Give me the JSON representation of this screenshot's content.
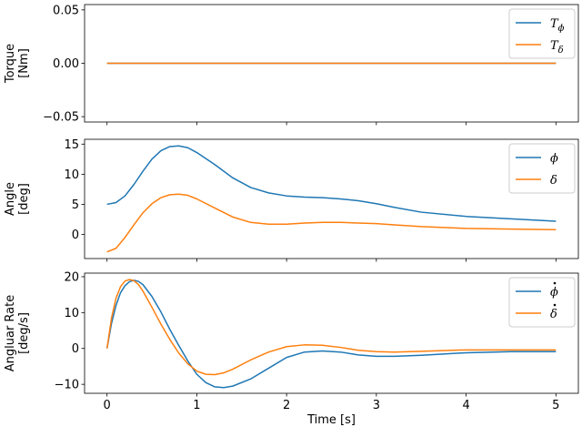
{
  "chart_data": [
    {
      "type": "line",
      "ylabel": [
        "Torque",
        "[Nm]"
      ],
      "xlim": [
        -0.25,
        5.25
      ],
      "ylim": [
        -0.055,
        0.055
      ],
      "yticks": [
        -0.05,
        0.0,
        0.05
      ],
      "yticklabels": [
        "−0.05",
        "0.00",
        "0.05"
      ],
      "xticks": [
        0,
        1,
        2,
        3,
        4,
        5
      ],
      "legend": "top-right",
      "series": [
        {
          "name": "T_ϕ",
          "legend_main": "T",
          "legend_sub": "ϕ",
          "color": "#1f77b4",
          "x": [
            0,
            5
          ],
          "y": [
            0,
            0
          ]
        },
        {
          "name": "T_δ",
          "legend_main": "T",
          "legend_sub": "δ",
          "color": "#ff7f0e",
          "x": [
            0,
            5
          ],
          "y": [
            0,
            0
          ]
        }
      ]
    },
    {
      "type": "line",
      "ylabel": [
        "Angle",
        "[deg]"
      ],
      "xlim": [
        -0.25,
        5.25
      ],
      "ylim": [
        -4,
        15.8
      ],
      "yticks": [
        0,
        5,
        10,
        15
      ],
      "yticklabels": [
        "0",
        "5",
        "10",
        "15"
      ],
      "xticks": [
        0,
        1,
        2,
        3,
        4,
        5
      ],
      "legend": "top-right",
      "series": [
        {
          "name": "ϕ",
          "legend_main": "ϕ",
          "color": "#1f77b4",
          "x": [
            0,
            0.1,
            0.2,
            0.3,
            0.4,
            0.5,
            0.6,
            0.7,
            0.8,
            0.9,
            1.0,
            1.2,
            1.4,
            1.6,
            1.8,
            2.0,
            2.2,
            2.4,
            2.6,
            2.8,
            3.0,
            3.2,
            3.5,
            4.0,
            4.5,
            5.0
          ],
          "y": [
            5.0,
            5.3,
            6.4,
            8.3,
            10.5,
            12.5,
            13.9,
            14.6,
            14.7,
            14.4,
            13.6,
            11.6,
            9.4,
            7.8,
            6.9,
            6.4,
            6.2,
            6.1,
            5.9,
            5.6,
            5.1,
            4.5,
            3.7,
            3.0,
            2.6,
            2.2
          ]
        },
        {
          "name": "δ",
          "legend_main": "δ",
          "color": "#ff7f0e",
          "x": [
            0,
            0.1,
            0.2,
            0.3,
            0.4,
            0.5,
            0.6,
            0.7,
            0.8,
            0.9,
            1.0,
            1.2,
            1.4,
            1.6,
            1.8,
            2.0,
            2.2,
            2.4,
            2.6,
            2.8,
            3.0,
            3.2,
            3.5,
            4.0,
            4.5,
            5.0
          ],
          "y": [
            -2.9,
            -2.3,
            -0.5,
            1.6,
            3.6,
            5.1,
            6.1,
            6.6,
            6.7,
            6.5,
            5.9,
            4.4,
            2.9,
            2.0,
            1.7,
            1.7,
            1.9,
            2.0,
            2.0,
            1.9,
            1.8,
            1.6,
            1.3,
            1.0,
            0.9,
            0.8
          ]
        }
      ]
    },
    {
      "type": "line",
      "ylabel": [
        "Angluar Rate",
        "[deg/s]"
      ],
      "xlim": [
        -0.25,
        5.25
      ],
      "ylim": [
        -12.5,
        21
      ],
      "yticks": [
        -10,
        0,
        10,
        20
      ],
      "yticklabels": [
        "−10",
        "0",
        "10",
        "20"
      ],
      "xticks": [
        0,
        1,
        2,
        3,
        4,
        5
      ],
      "xticklabels": [
        "0",
        "1",
        "2",
        "3",
        "4",
        "5"
      ],
      "xlabel": "Time [s]",
      "legend": "top-right",
      "series": [
        {
          "name": "ϕ̇",
          "legend_main": "ϕ",
          "legend_dot": true,
          "color": "#1f77b4",
          "x": [
            0,
            0.05,
            0.1,
            0.15,
            0.2,
            0.25,
            0.3,
            0.35,
            0.4,
            0.5,
            0.6,
            0.7,
            0.8,
            0.9,
            1.0,
            1.1,
            1.2,
            1.3,
            1.4,
            1.6,
            1.8,
            2.0,
            2.2,
            2.4,
            2.6,
            2.8,
            3.0,
            3.2,
            3.5,
            4.0,
            4.5,
            5.0
          ],
          "y": [
            0,
            7,
            12,
            15.5,
            17.5,
            18.6,
            19.0,
            18.7,
            17.8,
            14.5,
            10.2,
            5.3,
            0.8,
            -3.5,
            -7.2,
            -9.5,
            -10.7,
            -10.9,
            -10.5,
            -8.5,
            -5.5,
            -2.5,
            -1.0,
            -0.7,
            -1.0,
            -1.8,
            -2.2,
            -2.2,
            -1.9,
            -1.2,
            -0.9,
            -0.9
          ]
        },
        {
          "name": "δ̇",
          "legend_main": "δ",
          "legend_dot": true,
          "color": "#ff7f0e",
          "x": [
            0,
            0.05,
            0.1,
            0.15,
            0.2,
            0.25,
            0.3,
            0.35,
            0.4,
            0.5,
            0.6,
            0.7,
            0.8,
            0.9,
            1.0,
            1.1,
            1.2,
            1.3,
            1.4,
            1.6,
            1.8,
            2.0,
            2.2,
            2.4,
            2.6,
            2.8,
            3.0,
            3.2,
            3.5,
            4.0,
            4.5,
            5.0
          ],
          "y": [
            0,
            8.5,
            14,
            17.2,
            18.8,
            19.2,
            18.9,
            17.8,
            16.0,
            11.5,
            6.8,
            2.5,
            -1.3,
            -4.3,
            -6.3,
            -7.2,
            -7.3,
            -6.8,
            -5.8,
            -3.2,
            -1.0,
            0.5,
            1.0,
            0.9,
            0.3,
            -0.5,
            -0.9,
            -1.0,
            -0.8,
            -0.4,
            -0.4,
            -0.4
          ]
        }
      ]
    }
  ]
}
